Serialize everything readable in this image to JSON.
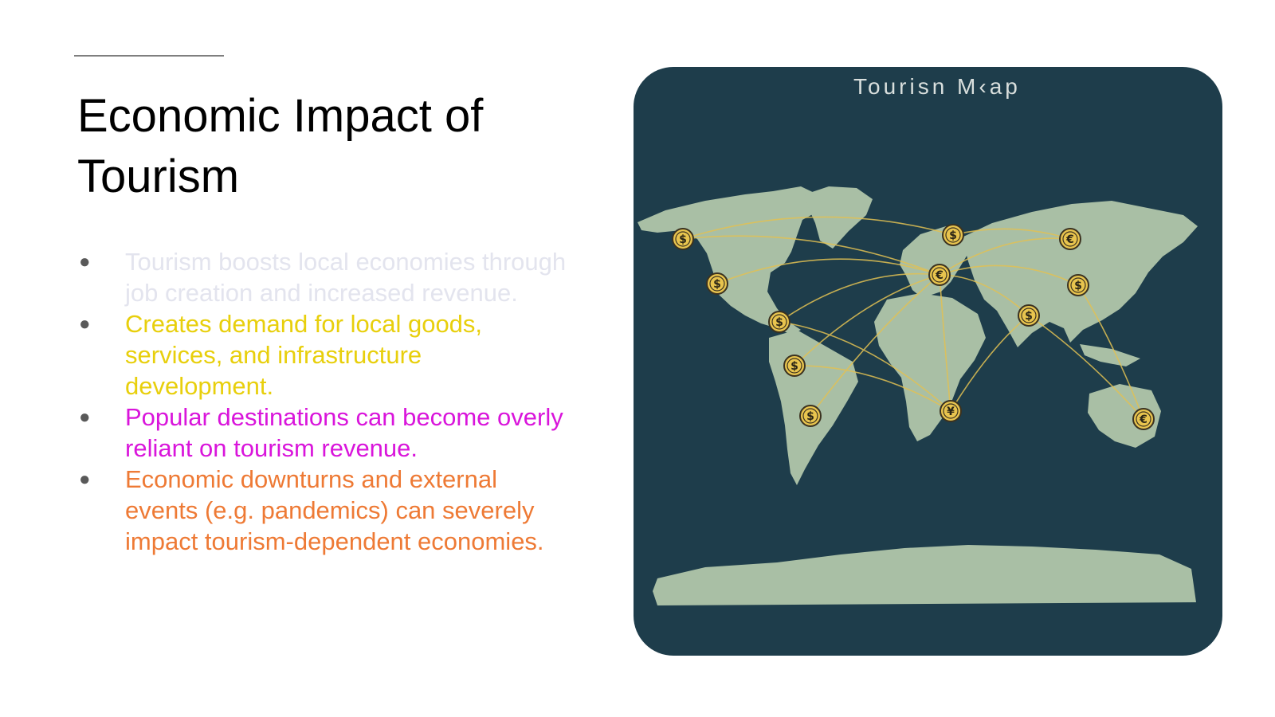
{
  "slide": {
    "title": "Economic Impact of Tourism",
    "bullets": [
      {
        "text": "Tourism boosts local economies through job creation and increased revenue.",
        "color": "#e3e4ee"
      },
      {
        "text": "Creates demand for local goods, services, and infrastructure development.",
        "color": "#e8cf0c"
      },
      {
        "text": "Popular destinations can become overly reliant on tourism revenue.",
        "color": "#d915db"
      },
      {
        "text": "Economic downturns and external events (e.g. pandemics) can severely impact tourism-dependent economies.",
        "color": "#ee7a35"
      }
    ]
  },
  "map": {
    "caption": "Tourisn M‹ap",
    "background_color": "#1e3d4b",
    "land_color": "#a9bfa5",
    "route_color": "#e2c153",
    "markers": [
      {
        "name": "north-america-west",
        "symbol": "$"
      },
      {
        "name": "usa-west-coast",
        "symbol": "$"
      },
      {
        "name": "caribbean",
        "symbol": "$"
      },
      {
        "name": "colombia",
        "symbol": "$"
      },
      {
        "name": "argentina",
        "symbol": "$"
      },
      {
        "name": "scandinavia",
        "symbol": "$"
      },
      {
        "name": "europe",
        "symbol": "€"
      },
      {
        "name": "southern-africa",
        "symbol": "¥"
      },
      {
        "name": "india",
        "symbol": "$"
      },
      {
        "name": "russia",
        "symbol": "€"
      },
      {
        "name": "china",
        "symbol": "$"
      },
      {
        "name": "australia",
        "symbol": "€"
      }
    ]
  }
}
